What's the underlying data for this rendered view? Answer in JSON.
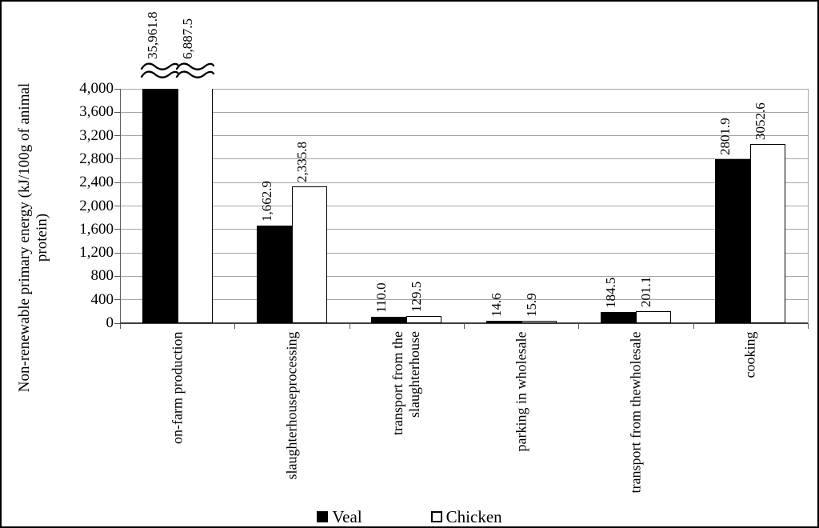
{
  "figure": {
    "background": "#ffffff",
    "frame_color": "#000000",
    "gridline_color": "#a6a6a6",
    "axis_color": "#595959"
  },
  "chart_data": {
    "type": "bar",
    "title": "",
    "xlabel": "",
    "ylabel": "Non-renewable primary energy (kJ/100g of animal\nprotein)",
    "ylim": [
      0,
      4000
    ],
    "ytick_step": 400,
    "ytick_labels": [
      "0",
      "400",
      "800",
      "1,200",
      "1,600",
      "2,000",
      "2,400",
      "2,800",
      "3,200",
      "3,600",
      "4,000"
    ],
    "grid": true,
    "legend_position": "bottom-center",
    "axis_break": "bars taller than 4,000 are clipped at the top with double wavy break marks",
    "categories": [
      "on-farm production",
      "slaughterhouseprocessing",
      "transport from the\nslaughterhouse",
      "parking in wholesale",
      "transport from thewholesale",
      "cooking"
    ],
    "series": [
      {
        "name": "Veal",
        "fill": "#000000",
        "values": [
          35961.8,
          1662.9,
          110.0,
          14.6,
          184.5,
          2801.9
        ],
        "labels": [
          "35,961.8",
          "1,662.9",
          "110.0",
          "14.6",
          "184.5",
          "2801.9"
        ]
      },
      {
        "name": "Chicken",
        "fill": "#ffffff",
        "border": "#000000",
        "values": [
          6887.5,
          2335.8,
          129.5,
          15.9,
          201.1,
          3052.6
        ],
        "labels": [
          "6,887.5",
          "2,335.8",
          "129.5",
          "15.9",
          "201.1",
          "3052.6"
        ]
      }
    ]
  },
  "legend": {
    "items": [
      {
        "label": "Veal",
        "fill": "#000000"
      },
      {
        "label": "Chicken",
        "fill": "#ffffff"
      }
    ]
  }
}
